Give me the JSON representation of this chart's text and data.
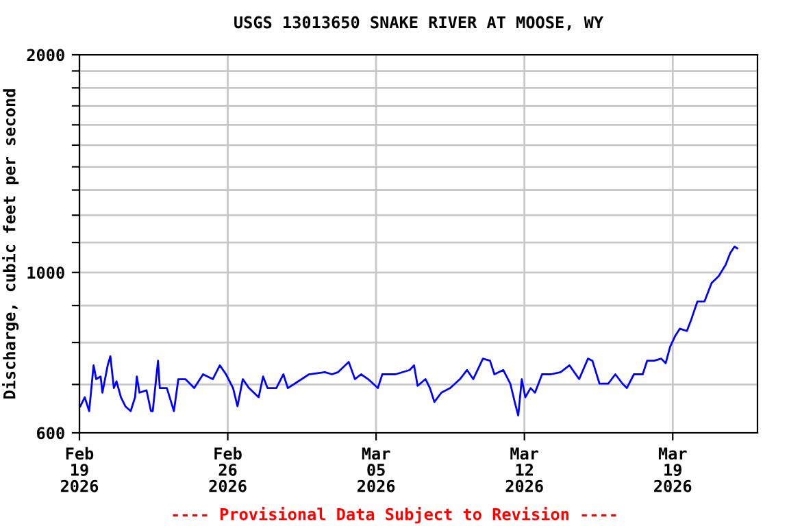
{
  "chart_data": {
    "type": "line",
    "title": "USGS 13013650 SNAKE RIVER AT MOOSE, WY",
    "ylabel": "Discharge, cubic feet per second",
    "annotations": [
      "---- Provisional Data Subject to Revision ----"
    ],
    "log": "y",
    "grid": true,
    "marker": "none",
    "line_style": "solid",
    "xlim": [
      "2026-02-19",
      "2026-03-23"
    ],
    "xticks": [
      {
        "value": "2026-02-19",
        "label": "Feb\n19\n2026"
      },
      {
        "value": "2026-02-26",
        "label": "Feb\n26\n2026"
      },
      {
        "value": "2026-03-05",
        "label": "Mar\n05\n2026"
      },
      {
        "value": "2026-03-12",
        "label": "Mar\n12\n2026"
      },
      {
        "value": "2026-03-19",
        "label": "Mar\n19\n2026"
      }
    ],
    "ylim": [
      600,
      2000
    ],
    "yticks": [
      600,
      {
        "value": 700,
        "label": null
      },
      {
        "value": 800,
        "label": null
      },
      {
        "value": 900,
        "label": null
      },
      1000,
      {
        "value": 1100,
        "label": null
      },
      {
        "value": 1200,
        "label": null
      },
      {
        "value": 1300,
        "label": null
      },
      {
        "value": 1400,
        "label": null
      },
      {
        "value": 1500,
        "label": null
      },
      {
        "value": 1600,
        "label": null
      },
      {
        "value": 1700,
        "label": null
      },
      {
        "value": 1800,
        "label": null
      },
      {
        "value": 1900,
        "label": null
      },
      2000
    ],
    "series": [
      {
        "color": "#0000ff",
        "x": [
          "2026-02-19T01:00",
          "2026-02-19T06:00",
          "2026-02-19T11:00",
          "2026-02-19T16:00",
          "2026-02-19T19:00",
          "2026-02-20T00:00",
          "2026-02-20T02:00",
          "2026-02-20T08:00",
          "2026-02-20T11:00",
          "2026-02-20T15:00",
          "2026-02-20T18:00",
          "2026-02-20T23:00",
          "2026-02-21T04:00",
          "2026-02-21T10:00",
          "2026-02-21T15:00",
          "2026-02-21T17:00",
          "2026-02-21T20:00",
          "2026-02-22T04:00",
          "2026-02-22T09:00",
          "2026-02-22T11:00",
          "2026-02-22T17:00",
          "2026-02-22T19:00",
          "2026-02-23T03:00",
          "2026-02-23T11:00",
          "2026-02-23T16:00",
          "2026-02-24T00:00",
          "2026-02-24T10:00",
          "2026-02-24T20:00",
          "2026-02-25T07:00",
          "2026-02-25T15:00",
          "2026-02-25T22:00",
          "2026-02-26T06:00",
          "2026-02-26T11:00",
          "2026-02-26T17:00",
          "2026-02-27T00:00",
          "2026-02-27T11:00",
          "2026-02-27T16:00",
          "2026-02-27T21:00",
          "2026-02-28T07:00",
          "2026-02-28T15:00",
          "2026-02-28T20:00",
          "2026-03-01T04:00",
          "2026-03-01T20:00",
          "2026-03-02T14:00",
          "2026-03-02T22:00",
          "2026-03-03T05:00",
          "2026-03-03T17:00",
          "2026-03-04T00:00",
          "2026-03-04T07:00",
          "2026-03-04T15:00",
          "2026-03-05T02:00",
          "2026-03-05T07:00",
          "2026-03-05T22:00",
          "2026-03-06T14:00",
          "2026-03-06T19:00",
          "2026-03-06T23:00",
          "2026-03-07T08:00",
          "2026-03-07T13:00",
          "2026-03-07T18:00",
          "2026-03-08T02:00",
          "2026-03-08T12:00",
          "2026-03-08T23:00",
          "2026-03-09T07:00",
          "2026-03-09T14:00",
          "2026-03-10T01:00",
          "2026-03-10T09:00",
          "2026-03-10T14:00",
          "2026-03-11T00:00",
          "2026-03-11T08:00",
          "2026-03-11T13:00",
          "2026-03-11T17:00",
          "2026-03-11T21:00",
          "2026-03-12T01:00",
          "2026-03-12T07:00",
          "2026-03-12T12:00",
          "2026-03-12T20:00",
          "2026-03-13T06:00",
          "2026-03-13T17:00",
          "2026-03-14T03:00",
          "2026-03-14T14:00",
          "2026-03-15T00:00",
          "2026-03-15T05:00",
          "2026-03-15T13:00",
          "2026-03-15T23:00",
          "2026-03-16T07:00",
          "2026-03-16T15:00",
          "2026-03-16T20:00",
          "2026-03-17T04:00",
          "2026-03-17T14:00",
          "2026-03-17T19:00",
          "2026-03-18T03:00",
          "2026-03-18T11:00",
          "2026-03-18T16:00",
          "2026-03-18T21:00",
          "2026-03-19T03:00",
          "2026-03-19T08:00",
          "2026-03-19T16:00",
          "2026-03-19T21:00",
          "2026-03-20T04:00",
          "2026-03-20T12:00",
          "2026-03-20T20:00",
          "2026-03-21T04:00",
          "2026-03-21T12:00",
          "2026-03-21T17:00",
          "2026-03-21T22:00",
          "2026-03-22T01:00"
        ],
        "values": [
          653,
          672,
          643,
          744,
          712,
          718,
          682,
          744,
          766,
          692,
          707,
          672,
          653,
          643,
          672,
          718,
          682,
          687,
          643,
          643,
          755,
          692,
          692,
          643,
          712,
          712,
          692,
          723,
          712,
          744,
          723,
          692,
          653,
          712,
          692,
          672,
          718,
          692,
          692,
          723,
          692,
          702,
          723,
          728,
          723,
          728,
          752,
          712,
          723,
          712,
          692,
          723,
          723,
          733,
          744,
          697,
          712,
          692,
          662,
          682,
          692,
          712,
          733,
          712,
          760,
          755,
          723,
          733,
          702,
          662,
          634,
          712,
          672,
          692,
          682,
          723,
          723,
          728,
          744,
          712,
          760,
          755,
          702,
          702,
          723,
          702,
          692,
          723,
          723,
          755,
          755,
          760,
          749,
          789,
          818,
          836,
          830,
          861,
          912,
          912,
          967,
          988,
          1025,
          1063,
          1086,
          1080
        ]
      }
    ]
  }
}
